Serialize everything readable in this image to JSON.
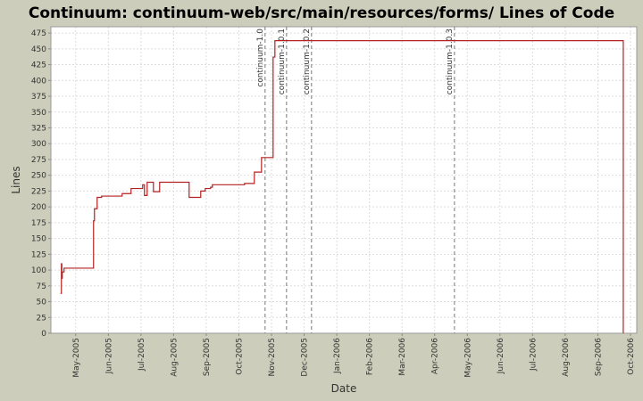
{
  "chart_data": {
    "type": "line",
    "title": "Continuum: continuum-web/src/main/resources/forms/ Lines of Code",
    "x_label": "Date",
    "y_label": "Lines",
    "step": true,
    "grid": true,
    "color": "#b22222",
    "x": [
      2005.2945,
      2005.2968,
      2005.2979,
      2005.2991,
      2005.3036,
      2005.3767,
      2005.3789,
      2005.3812,
      2005.3881,
      2005.3995,
      2005.4474,
      2005.4519,
      2005.4702,
      2005.4747,
      2005.4998,
      2005.5044,
      2005.5089,
      2005.5158,
      2005.5318,
      2005.5477,
      2005.6184,
      2005.623,
      2005.6481,
      2005.6526,
      2005.6641,
      2005.6777,
      2005.6823,
      2005.7599,
      2005.7644,
      2005.7849,
      2005.7895,
      2005.8032,
      2005.8078,
      2005.8351,
      2005.8374,
      2005.842,
      2005.8465,
      2006.7293,
      2006.7316
    ],
    "values": [
      63,
      110,
      87,
      97,
      103,
      103,
      178,
      197,
      215,
      217,
      217,
      221,
      221,
      229,
      229,
      235,
      218,
      239,
      224,
      239,
      239,
      215,
      215,
      225,
      229,
      231,
      235,
      235,
      237,
      237,
      255,
      255,
      278,
      278,
      437,
      463,
      463,
      463,
      0
    ],
    "markers": [
      {
        "x": 2005.8169,
        "label": "continuum-1.0"
      },
      {
        "x": 2005.8717,
        "label": "continuum-1.0.1"
      },
      {
        "x": 2005.9355,
        "label": "continuum-1.0.2"
      },
      {
        "x": 2006.3005,
        "label": "continuum-1.0.3"
      }
    ],
    "xlim": [
      2005.27,
      2006.766
    ],
    "xticks": [
      {
        "value": 2005.3333,
        "label": "May-2005"
      },
      {
        "value": 2005.4167,
        "label": "Jun-2005"
      },
      {
        "value": 2005.5,
        "label": "Jul-2005"
      },
      {
        "value": 2005.5833,
        "label": "Aug-2005"
      },
      {
        "value": 2005.6667,
        "label": "Sep-2005"
      },
      {
        "value": 2005.75,
        "label": "Oct-2005"
      },
      {
        "value": 2005.8333,
        "label": "Nov-2005"
      },
      {
        "value": 2005.9167,
        "label": "Dec-2005"
      },
      {
        "value": 2006.0,
        "label": "Jan-2006"
      },
      {
        "value": 2006.0833,
        "label": "Feb-2006"
      },
      {
        "value": 2006.1667,
        "label": "Mar-2006"
      },
      {
        "value": 2006.25,
        "label": "Apr-2006"
      },
      {
        "value": 2006.3333,
        "label": "May-2006"
      },
      {
        "value": 2006.4167,
        "label": "Jun-2006"
      },
      {
        "value": 2006.5,
        "label": "Jul-2006"
      },
      {
        "value": 2006.5833,
        "label": "Aug-2006"
      },
      {
        "value": 2006.6667,
        "label": "Sep-2006"
      },
      {
        "value": 2006.75,
        "label": "Oct-2006"
      }
    ],
    "ylim": [
      0,
      485
    ],
    "yticks": [
      0,
      25,
      50,
      75,
      100,
      125,
      150,
      175,
      200,
      225,
      250,
      275,
      300,
      325,
      350,
      375,
      400,
      425,
      450,
      475
    ]
  }
}
